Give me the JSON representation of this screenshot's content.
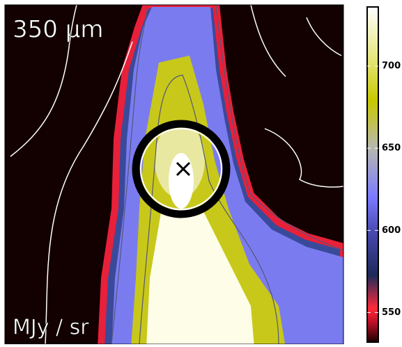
{
  "chart_data": {
    "type": "colorbar",
    "band_label": "350 μm",
    "unit_label": "MJy / sr",
    "ylim": [
      532,
      736
    ],
    "yticks": [
      550,
      600,
      650,
      700
    ]
  }
}
